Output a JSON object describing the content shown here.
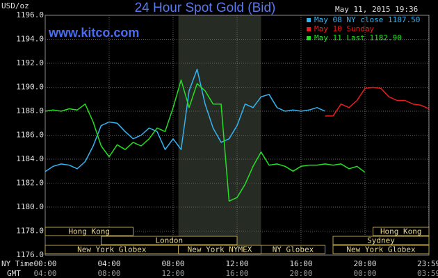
{
  "chart_data": {
    "type": "line",
    "title": "24 Hour Spot Gold (Bid)",
    "unit": "USD/oz",
    "timestamp": "May 11, 2015 19:36",
    "source": "www.kitco.com",
    "xlabel": "NY Time",
    "x2label": "GMT",
    "grid": true,
    "x": [
      0,
      0.5,
      1,
      1.5,
      2,
      2.5,
      3,
      3.5,
      4,
      4.5,
      5,
      5.5,
      6,
      6.5,
      7,
      7.5,
      8,
      8.5,
      9,
      9.5,
      10,
      10.5,
      11,
      11.5,
      12,
      12.5,
      13,
      13.5,
      14,
      14.5,
      15,
      15.5,
      16,
      16.5,
      17,
      17.5,
      18,
      18.5,
      19,
      19.5,
      20,
      20.5,
      21,
      21.5,
      22,
      22.5,
      23,
      23.5,
      24
    ],
    "xlim": [
      0,
      24
    ],
    "xticks": [
      {
        "value": 0,
        "label": "00:00"
      },
      {
        "value": 4,
        "label": "04:00"
      },
      {
        "value": 8,
        "label": "08:00"
      },
      {
        "value": 12,
        "label": "12:00"
      },
      {
        "value": 16,
        "label": "16:00"
      },
      {
        "value": 20,
        "label": "20:00"
      },
      {
        "value": 23.98,
        "label": "23:59"
      }
    ],
    "x2ticks": [
      {
        "value": 0,
        "label": "04:00"
      },
      {
        "value": 4,
        "label": "08:00"
      },
      {
        "value": 8,
        "label": "12:00"
      },
      {
        "value": 12,
        "label": "16:00"
      },
      {
        "value": 16,
        "label": "20:00"
      },
      {
        "value": 20,
        "label": "00:00"
      },
      {
        "value": 23.98,
        "label": "03:59"
      }
    ],
    "ylim": [
      1176,
      1196
    ],
    "yticks": [
      {
        "value": 1176,
        "label": "1176.0"
      },
      {
        "value": 1178,
        "label": "1178.0"
      },
      {
        "value": 1180,
        "label": "1180.0"
      },
      {
        "value": 1182,
        "label": "1182.0"
      },
      {
        "value": 1184,
        "label": "1184.0"
      },
      {
        "value": 1186,
        "label": "1186.0"
      },
      {
        "value": 1188,
        "label": "1188.0"
      },
      {
        "value": 1190,
        "label": "1190.0"
      },
      {
        "value": 1192,
        "label": "1192.0"
      },
      {
        "value": 1194,
        "label": "1194.0"
      },
      {
        "value": 1196,
        "label": "1196.0"
      }
    ],
    "series": [
      {
        "name": "May 08 NY close 1187.50",
        "color": "#33b5f5",
        "values": [
          1182.96,
          1183.4,
          1183.6,
          1183.5,
          1183.2,
          1183.8,
          1185.1,
          1186.8,
          1187.1,
          1187.0,
          1186.3,
          1185.7,
          1186.0,
          1186.6,
          1186.3,
          1184.8,
          1185.7,
          1184.8,
          1189.7,
          1191.5,
          1188.6,
          1186.6,
          1185.4,
          1185.7,
          1186.8,
          1188.6,
          1188.3,
          1189.2,
          1189.4,
          1188.3,
          1188.0,
          1188.1,
          1188.0,
          1188.1,
          1188.3,
          1188.0,
          null,
          null,
          null,
          null,
          null,
          null,
          null,
          null,
          null,
          null,
          null,
          null,
          null
        ]
      },
      {
        "name": "May 10 Sunday",
        "color": "#ee1c1c",
        "values": [
          null,
          null,
          null,
          null,
          null,
          null,
          null,
          null,
          null,
          null,
          null,
          null,
          null,
          null,
          null,
          null,
          null,
          null,
          null,
          null,
          null,
          null,
          null,
          null,
          null,
          null,
          null,
          null,
          null,
          null,
          null,
          null,
          null,
          null,
          null,
          1187.6,
          1187.6,
          1188.6,
          1188.3,
          1188.9,
          1189.9,
          1190.0,
          1189.9,
          1189.2,
          1188.9,
          1188.9,
          1188.6,
          1188.5,
          1188.2
        ]
      },
      {
        "name": "May 11 Last 1182.90",
        "color": "#22e022",
        "values": [
          1188.0,
          1188.1,
          1188.0,
          1188.2,
          1188.1,
          1188.6,
          1187.1,
          1185.1,
          1184.2,
          1185.2,
          1184.8,
          1185.4,
          1185.1,
          1185.7,
          1186.6,
          1186.3,
          1188.3,
          1190.6,
          1188.3,
          1190.3,
          1189.7,
          1188.6,
          1188.6,
          1180.5,
          1180.8,
          1181.9,
          1183.4,
          1184.6,
          1183.5,
          1183.6,
          1183.4,
          1183.0,
          1183.4,
          1183.5,
          1183.5,
          1183.6,
          1183.5,
          1183.6,
          1183.2,
          1183.4,
          1182.9,
          null,
          null,
          null,
          null,
          null,
          null,
          null,
          null
        ]
      }
    ],
    "sessions": [
      [
        {
          "name": "Hong Kong",
          "start": 0,
          "end": 5.5
        },
        {
          "name": "Hong Kong",
          "start": 20.5,
          "end": 24
        }
      ],
      [
        {
          "name": "London",
          "start": 3.5,
          "end": 12
        },
        {
          "name": "Sydney",
          "start": 18,
          "end": 24
        }
      ],
      [
        {
          "name": "New York Globex",
          "start": 0,
          "end": 8.33
        },
        {
          "name": "New York NYMEX",
          "start": 8.33,
          "end": 13.5
        },
        {
          "name": "NY Globex",
          "start": 13.5,
          "end": 17.5
        },
        {
          "name": "New York Globex",
          "start": 18,
          "end": 24
        }
      ]
    ]
  }
}
